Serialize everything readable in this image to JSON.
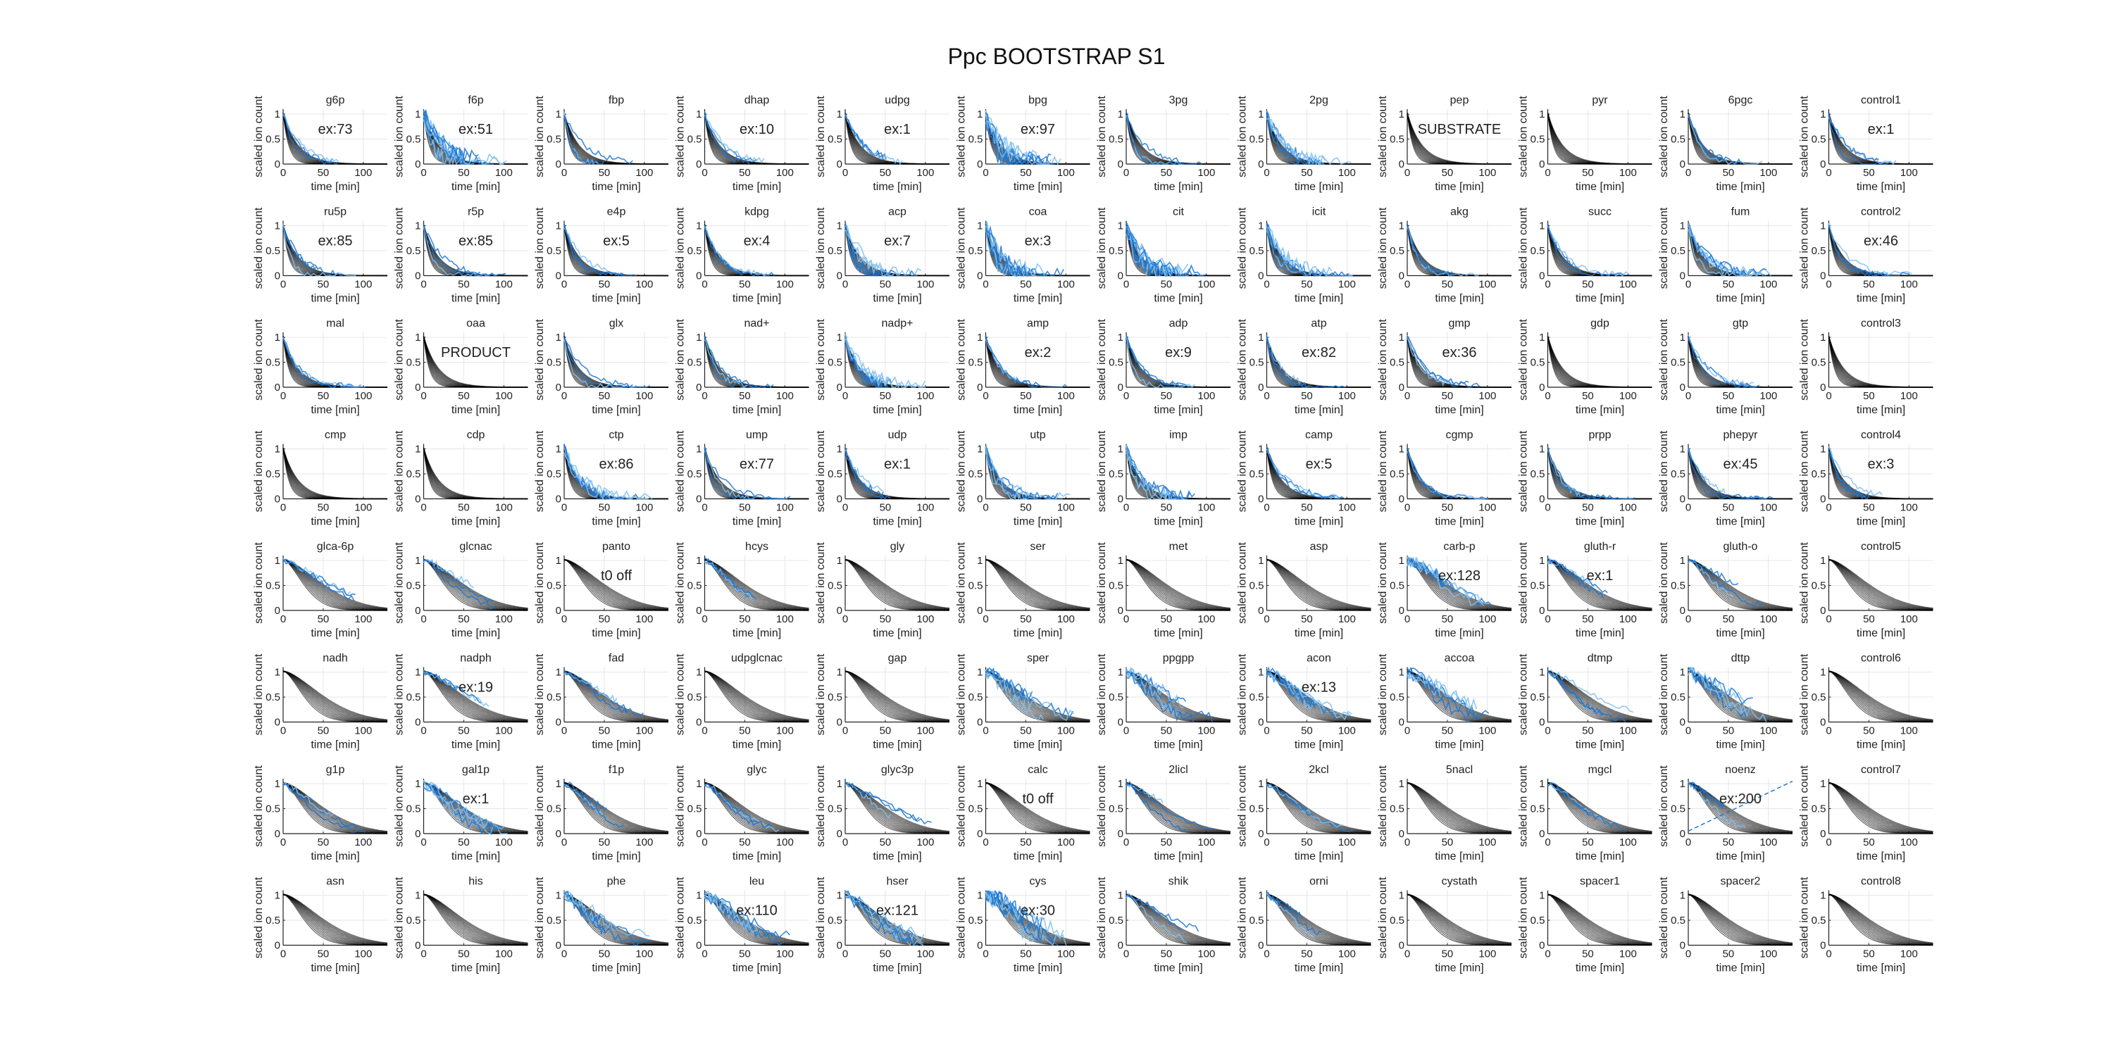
{
  "title": "Ppc BOOTSTRAP S1",
  "xlabel": "time [min]",
  "ylabel": "scaled ion count",
  "xticks": [
    "0",
    "50",
    "100"
  ],
  "yticks": [
    "0",
    "0.5",
    "1"
  ],
  "colors": {
    "fit": "#000000",
    "data": "#1f77d0",
    "light": "#7fbff0",
    "axis": "#222222",
    "grid": "#e6e6e6"
  },
  "chart_data": {
    "type": "line",
    "layout": "small-multiples",
    "xlim": [
      0,
      130
    ],
    "ylim": [
      0,
      1.1
    ],
    "grid": true,
    "panels": [
      {
        "name": "g6p",
        "annotation": "ex:73",
        "decay": "fast",
        "noise": 1
      },
      {
        "name": "f6p",
        "annotation": "ex:51",
        "decay": "fast",
        "noise": 3
      },
      {
        "name": "fbp",
        "annotation": "",
        "decay": "fast",
        "noise": 1
      },
      {
        "name": "dhap",
        "annotation": "ex:10",
        "decay": "fast",
        "noise": 1
      },
      {
        "name": "udpg",
        "annotation": "ex:1",
        "decay": "fast",
        "noise": 1
      },
      {
        "name": "bpg",
        "annotation": "ex:97",
        "decay": "fast",
        "noise": 3
      },
      {
        "name": "3pg",
        "annotation": "",
        "decay": "fast",
        "noise": 1
      },
      {
        "name": "2pg",
        "annotation": "",
        "decay": "fast",
        "noise": 2
      },
      {
        "name": "pep",
        "annotation": "SUBSTRATE",
        "decay": "fast",
        "noise": 0
      },
      {
        "name": "pyr",
        "annotation": "",
        "decay": "fast",
        "noise": 0
      },
      {
        "name": "6pgc",
        "annotation": "",
        "decay": "fast",
        "noise": 1
      },
      {
        "name": "control1",
        "annotation": "ex:1",
        "decay": "fast",
        "noise": 1
      },
      {
        "name": "ru5p",
        "annotation": "ex:85",
        "decay": "fast",
        "noise": 1
      },
      {
        "name": "r5p",
        "annotation": "ex:85",
        "decay": "fast",
        "noise": 1
      },
      {
        "name": "e4p",
        "annotation": "ex:5",
        "decay": "fast",
        "noise": 1
      },
      {
        "name": "kdpg",
        "annotation": "ex:4",
        "decay": "fast",
        "noise": 1
      },
      {
        "name": "acp",
        "annotation": "ex:7",
        "decay": "fast",
        "noise": 2
      },
      {
        "name": "coa",
        "annotation": "ex:3",
        "decay": "fast",
        "noise": 3
      },
      {
        "name": "cit",
        "annotation": "",
        "decay": "fast",
        "noise": 3
      },
      {
        "name": "icit",
        "annotation": "",
        "decay": "fast",
        "noise": 2
      },
      {
        "name": "akg",
        "annotation": "",
        "decay": "fast",
        "noise": 1
      },
      {
        "name": "succ",
        "annotation": "",
        "decay": "fast",
        "noise": 1
      },
      {
        "name": "fum",
        "annotation": "",
        "decay": "fast",
        "noise": 2
      },
      {
        "name": "control2",
        "annotation": "ex:46",
        "decay": "fast",
        "noise": 1
      },
      {
        "name": "mal",
        "annotation": "",
        "decay": "fast",
        "noise": 1
      },
      {
        "name": "oaa",
        "annotation": "PRODUCT",
        "decay": "fast",
        "noise": 0
      },
      {
        "name": "glx",
        "annotation": "",
        "decay": "fast",
        "noise": 1
      },
      {
        "name": "nad+",
        "annotation": "",
        "decay": "fast",
        "noise": 1
      },
      {
        "name": "nadp+",
        "annotation": "",
        "decay": "fast",
        "noise": 2
      },
      {
        "name": "amp",
        "annotation": "ex:2",
        "decay": "fast",
        "noise": 1
      },
      {
        "name": "adp",
        "annotation": "ex:9",
        "decay": "fast",
        "noise": 1
      },
      {
        "name": "atp",
        "annotation": "ex:82",
        "decay": "fast",
        "noise": 1
      },
      {
        "name": "gmp",
        "annotation": "ex:36",
        "decay": "fast",
        "noise": 1
      },
      {
        "name": "gdp",
        "annotation": "",
        "decay": "fast",
        "noise": 0
      },
      {
        "name": "gtp",
        "annotation": "",
        "decay": "fast",
        "noise": 1
      },
      {
        "name": "control3",
        "annotation": "",
        "decay": "fast",
        "noise": 0
      },
      {
        "name": "cmp",
        "annotation": "",
        "decay": "fast",
        "noise": 0
      },
      {
        "name": "cdp",
        "annotation": "",
        "decay": "fast",
        "noise": 0
      },
      {
        "name": "ctp",
        "annotation": "ex:86",
        "decay": "fast",
        "noise": 2
      },
      {
        "name": "ump",
        "annotation": "ex:77",
        "decay": "fast",
        "noise": 1
      },
      {
        "name": "udp",
        "annotation": "ex:1",
        "decay": "fast",
        "noise": 1
      },
      {
        "name": "utp",
        "annotation": "",
        "decay": "fast",
        "noise": 2
      },
      {
        "name": "imp",
        "annotation": "",
        "decay": "fast",
        "noise": 2
      },
      {
        "name": "camp",
        "annotation": "ex:5",
        "decay": "fast",
        "noise": 1
      },
      {
        "name": "cgmp",
        "annotation": "",
        "decay": "fast",
        "noise": 1
      },
      {
        "name": "prpp",
        "annotation": "",
        "decay": "fast",
        "noise": 1
      },
      {
        "name": "phepyr",
        "annotation": "ex:45",
        "decay": "fast",
        "noise": 1
      },
      {
        "name": "control4",
        "annotation": "ex:3",
        "decay": "fast",
        "noise": 1
      },
      {
        "name": "glca-6p",
        "annotation": "",
        "decay": "slow",
        "noise": 1
      },
      {
        "name": "glcnac",
        "annotation": "",
        "decay": "slow",
        "noise": 1
      },
      {
        "name": "panto",
        "annotation": "t0 off",
        "decay": "slow",
        "noise": 0
      },
      {
        "name": "hcys",
        "annotation": "",
        "decay": "slow",
        "noise": 1
      },
      {
        "name": "gly",
        "annotation": "",
        "decay": "slow",
        "noise": 0
      },
      {
        "name": "ser",
        "annotation": "",
        "decay": "slow",
        "noise": 0
      },
      {
        "name": "met",
        "annotation": "",
        "decay": "slow",
        "noise": 0
      },
      {
        "name": "asp",
        "annotation": "",
        "decay": "slow",
        "noise": 0
      },
      {
        "name": "carb-p",
        "annotation": "ex:128",
        "decay": "slow",
        "noise": 2
      },
      {
        "name": "gluth-r",
        "annotation": "ex:1",
        "decay": "slow",
        "noise": 1
      },
      {
        "name": "gluth-o",
        "annotation": "",
        "decay": "slow",
        "noise": 1
      },
      {
        "name": "control5",
        "annotation": "",
        "decay": "slow",
        "noise": 0
      },
      {
        "name": "nadh",
        "annotation": "",
        "decay": "slow",
        "noise": 0
      },
      {
        "name": "nadph",
        "annotation": "ex:19",
        "decay": "slow",
        "noise": 1
      },
      {
        "name": "fad",
        "annotation": "",
        "decay": "slow",
        "noise": 1
      },
      {
        "name": "udpglcnac",
        "annotation": "",
        "decay": "slow",
        "noise": 0
      },
      {
        "name": "gap",
        "annotation": "",
        "decay": "slow",
        "noise": 0
      },
      {
        "name": "sper",
        "annotation": "",
        "decay": "slow",
        "noise": 2
      },
      {
        "name": "ppgpp",
        "annotation": "",
        "decay": "slow",
        "noise": 2
      },
      {
        "name": "acon",
        "annotation": "ex:13",
        "decay": "slow",
        "noise": 2
      },
      {
        "name": "accoa",
        "annotation": "",
        "decay": "slow",
        "noise": 2
      },
      {
        "name": "dtmp",
        "annotation": "",
        "decay": "slow",
        "noise": 1
      },
      {
        "name": "dttp",
        "annotation": "",
        "decay": "slow",
        "noise": 2
      },
      {
        "name": "control6",
        "annotation": "",
        "decay": "slow",
        "noise": 0
      },
      {
        "name": "g1p",
        "annotation": "",
        "decay": "slow",
        "noise": 1
      },
      {
        "name": "gal1p",
        "annotation": "ex:1",
        "decay": "slow",
        "noise": 2
      },
      {
        "name": "f1p",
        "annotation": "",
        "decay": "slow",
        "noise": 1
      },
      {
        "name": "glyc",
        "annotation": "",
        "decay": "slow",
        "noise": 1
      },
      {
        "name": "glyc3p",
        "annotation": "",
        "decay": "slow",
        "noise": 1
      },
      {
        "name": "calc",
        "annotation": "t0 off",
        "decay": "slow",
        "noise": 0
      },
      {
        "name": "2licl",
        "annotation": "",
        "decay": "slow",
        "noise": 1
      },
      {
        "name": "2kcl",
        "annotation": "",
        "decay": "slow",
        "noise": 1
      },
      {
        "name": "5nacl",
        "annotation": "",
        "decay": "slow",
        "noise": 0
      },
      {
        "name": "mgcl",
        "annotation": "",
        "decay": "slow",
        "noise": 1
      },
      {
        "name": "noenz",
        "annotation": "ex:200",
        "decay": "slow",
        "noise": 1,
        "rising": true
      },
      {
        "name": "control7",
        "annotation": "",
        "decay": "slow",
        "noise": 0
      },
      {
        "name": "asn",
        "annotation": "",
        "decay": "slow",
        "noise": 0
      },
      {
        "name": "his",
        "annotation": "",
        "decay": "slow",
        "noise": 0
      },
      {
        "name": "phe",
        "annotation": "",
        "decay": "slow",
        "noise": 2
      },
      {
        "name": "leu",
        "annotation": "ex:110",
        "decay": "slow",
        "noise": 2
      },
      {
        "name": "hser",
        "annotation": "ex:121",
        "decay": "slow",
        "noise": 2
      },
      {
        "name": "cys",
        "annotation": "ex:30",
        "decay": "slow",
        "noise": 3
      },
      {
        "name": "shik",
        "annotation": "",
        "decay": "slow",
        "noise": 1
      },
      {
        "name": "orni",
        "annotation": "",
        "decay": "slow",
        "noise": 1
      },
      {
        "name": "cystath",
        "annotation": "",
        "decay": "slow",
        "noise": 0
      },
      {
        "name": "spacer1",
        "annotation": "",
        "decay": "slow",
        "noise": 0
      },
      {
        "name": "spacer2",
        "annotation": "",
        "decay": "slow",
        "noise": 0
      },
      {
        "name": "control8",
        "annotation": "",
        "decay": "slow",
        "noise": 0
      }
    ]
  }
}
